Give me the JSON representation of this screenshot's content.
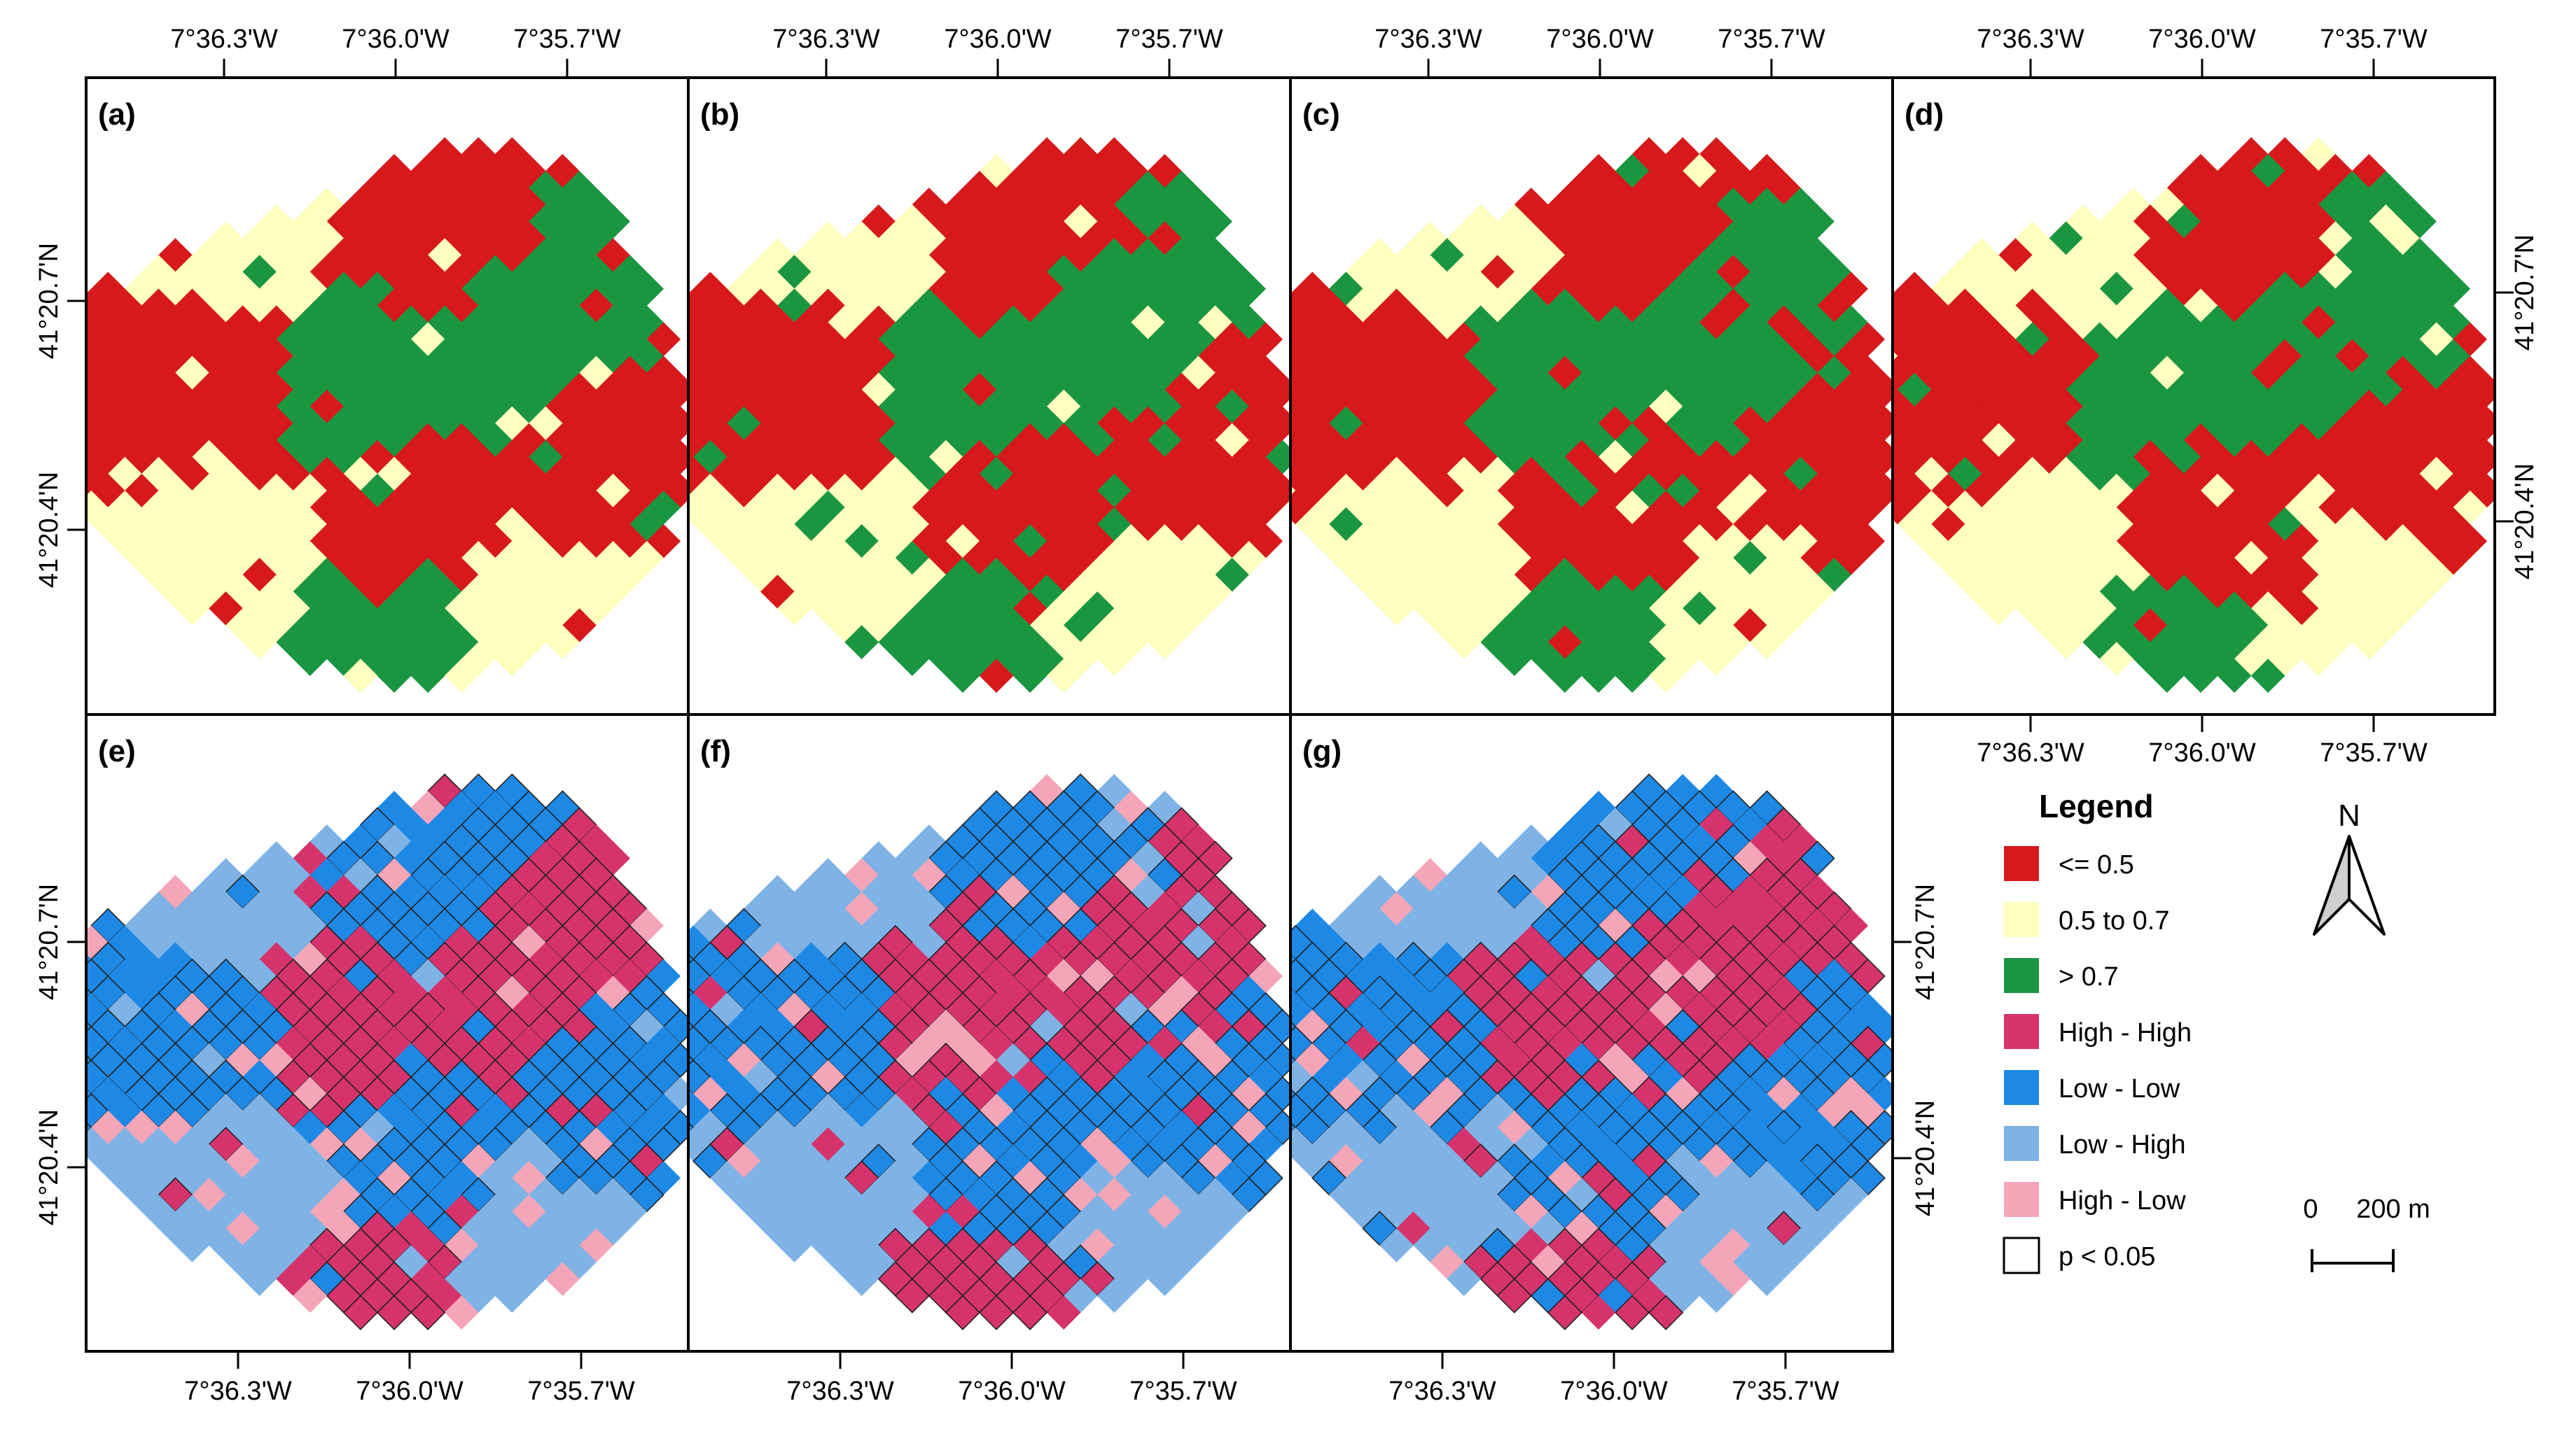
{
  "figure": {
    "coordinate_labels": {
      "lon": [
        "7°36.3'W",
        "7°36.0'W",
        "7°35.7'W"
      ],
      "lat": [
        "41°20.7'N",
        "41°20.4'N"
      ]
    },
    "panels": [
      {
        "label": "(a)",
        "kind": "ratio",
        "seed": 11
      },
      {
        "label": "(b)",
        "kind": "ratio",
        "seed": 23
      },
      {
        "label": "(c)",
        "kind": "ratio",
        "seed": 37
      },
      {
        "label": "(d)",
        "kind": "ratio",
        "seed": 53
      },
      {
        "label": "(e)",
        "kind": "lisa",
        "seed": 61
      },
      {
        "label": "(f)",
        "kind": "lisa",
        "seed": 71
      },
      {
        "label": "(g)",
        "kind": "lisa",
        "seed": 89
      }
    ],
    "legend": {
      "title": "Legend",
      "items": [
        {
          "label": "<= 0.5",
          "color": "#d7191c",
          "key": "low"
        },
        {
          "label": "0.5 to 0.7",
          "color": "#ffffbf",
          "key": "mid"
        },
        {
          "label": "> 0.7",
          "color": "#1a9641",
          "key": "high"
        },
        {
          "label": "High - High",
          "color": "#d6336c",
          "key": "hh"
        },
        {
          "label": "Low - Low",
          "color": "#1e88e5",
          "key": "ll"
        },
        {
          "label": "Low - High",
          "color": "#7fb2e5",
          "key": "lh"
        },
        {
          "label": "High - Low",
          "color": "#f4a6b8",
          "key": "hl"
        },
        {
          "label": "p < 0.05",
          "color": "#ffffff",
          "key": "sig"
        }
      ]
    },
    "north_arrow": {
      "label": "N"
    },
    "scale_bar": {
      "start": "0",
      "end": "200 m"
    }
  }
}
